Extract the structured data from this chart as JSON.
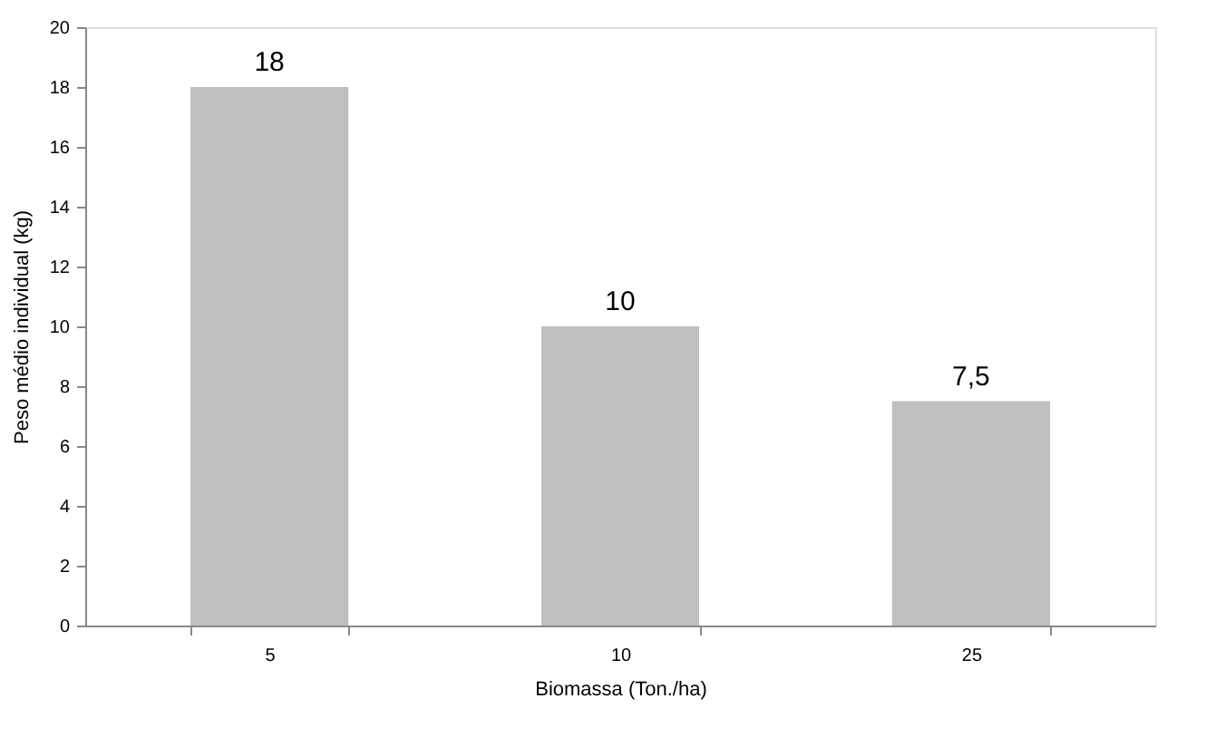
{
  "chart_data": {
    "type": "bar",
    "xlabel": "Biomassa (Ton./ha)",
    "ylabel": "Peso médio individual (kg)",
    "categories": [
      "5",
      "10",
      "25"
    ],
    "values": [
      18,
      10,
      7.5
    ],
    "value_labels": [
      "18",
      "10",
      "7,5"
    ],
    "color": "#bfbfbf",
    "ylim": [
      0,
      20
    ],
    "yticks": [
      0,
      2,
      4,
      6,
      8,
      10,
      12,
      14,
      16,
      18,
      20
    ],
    "grid": false
  }
}
